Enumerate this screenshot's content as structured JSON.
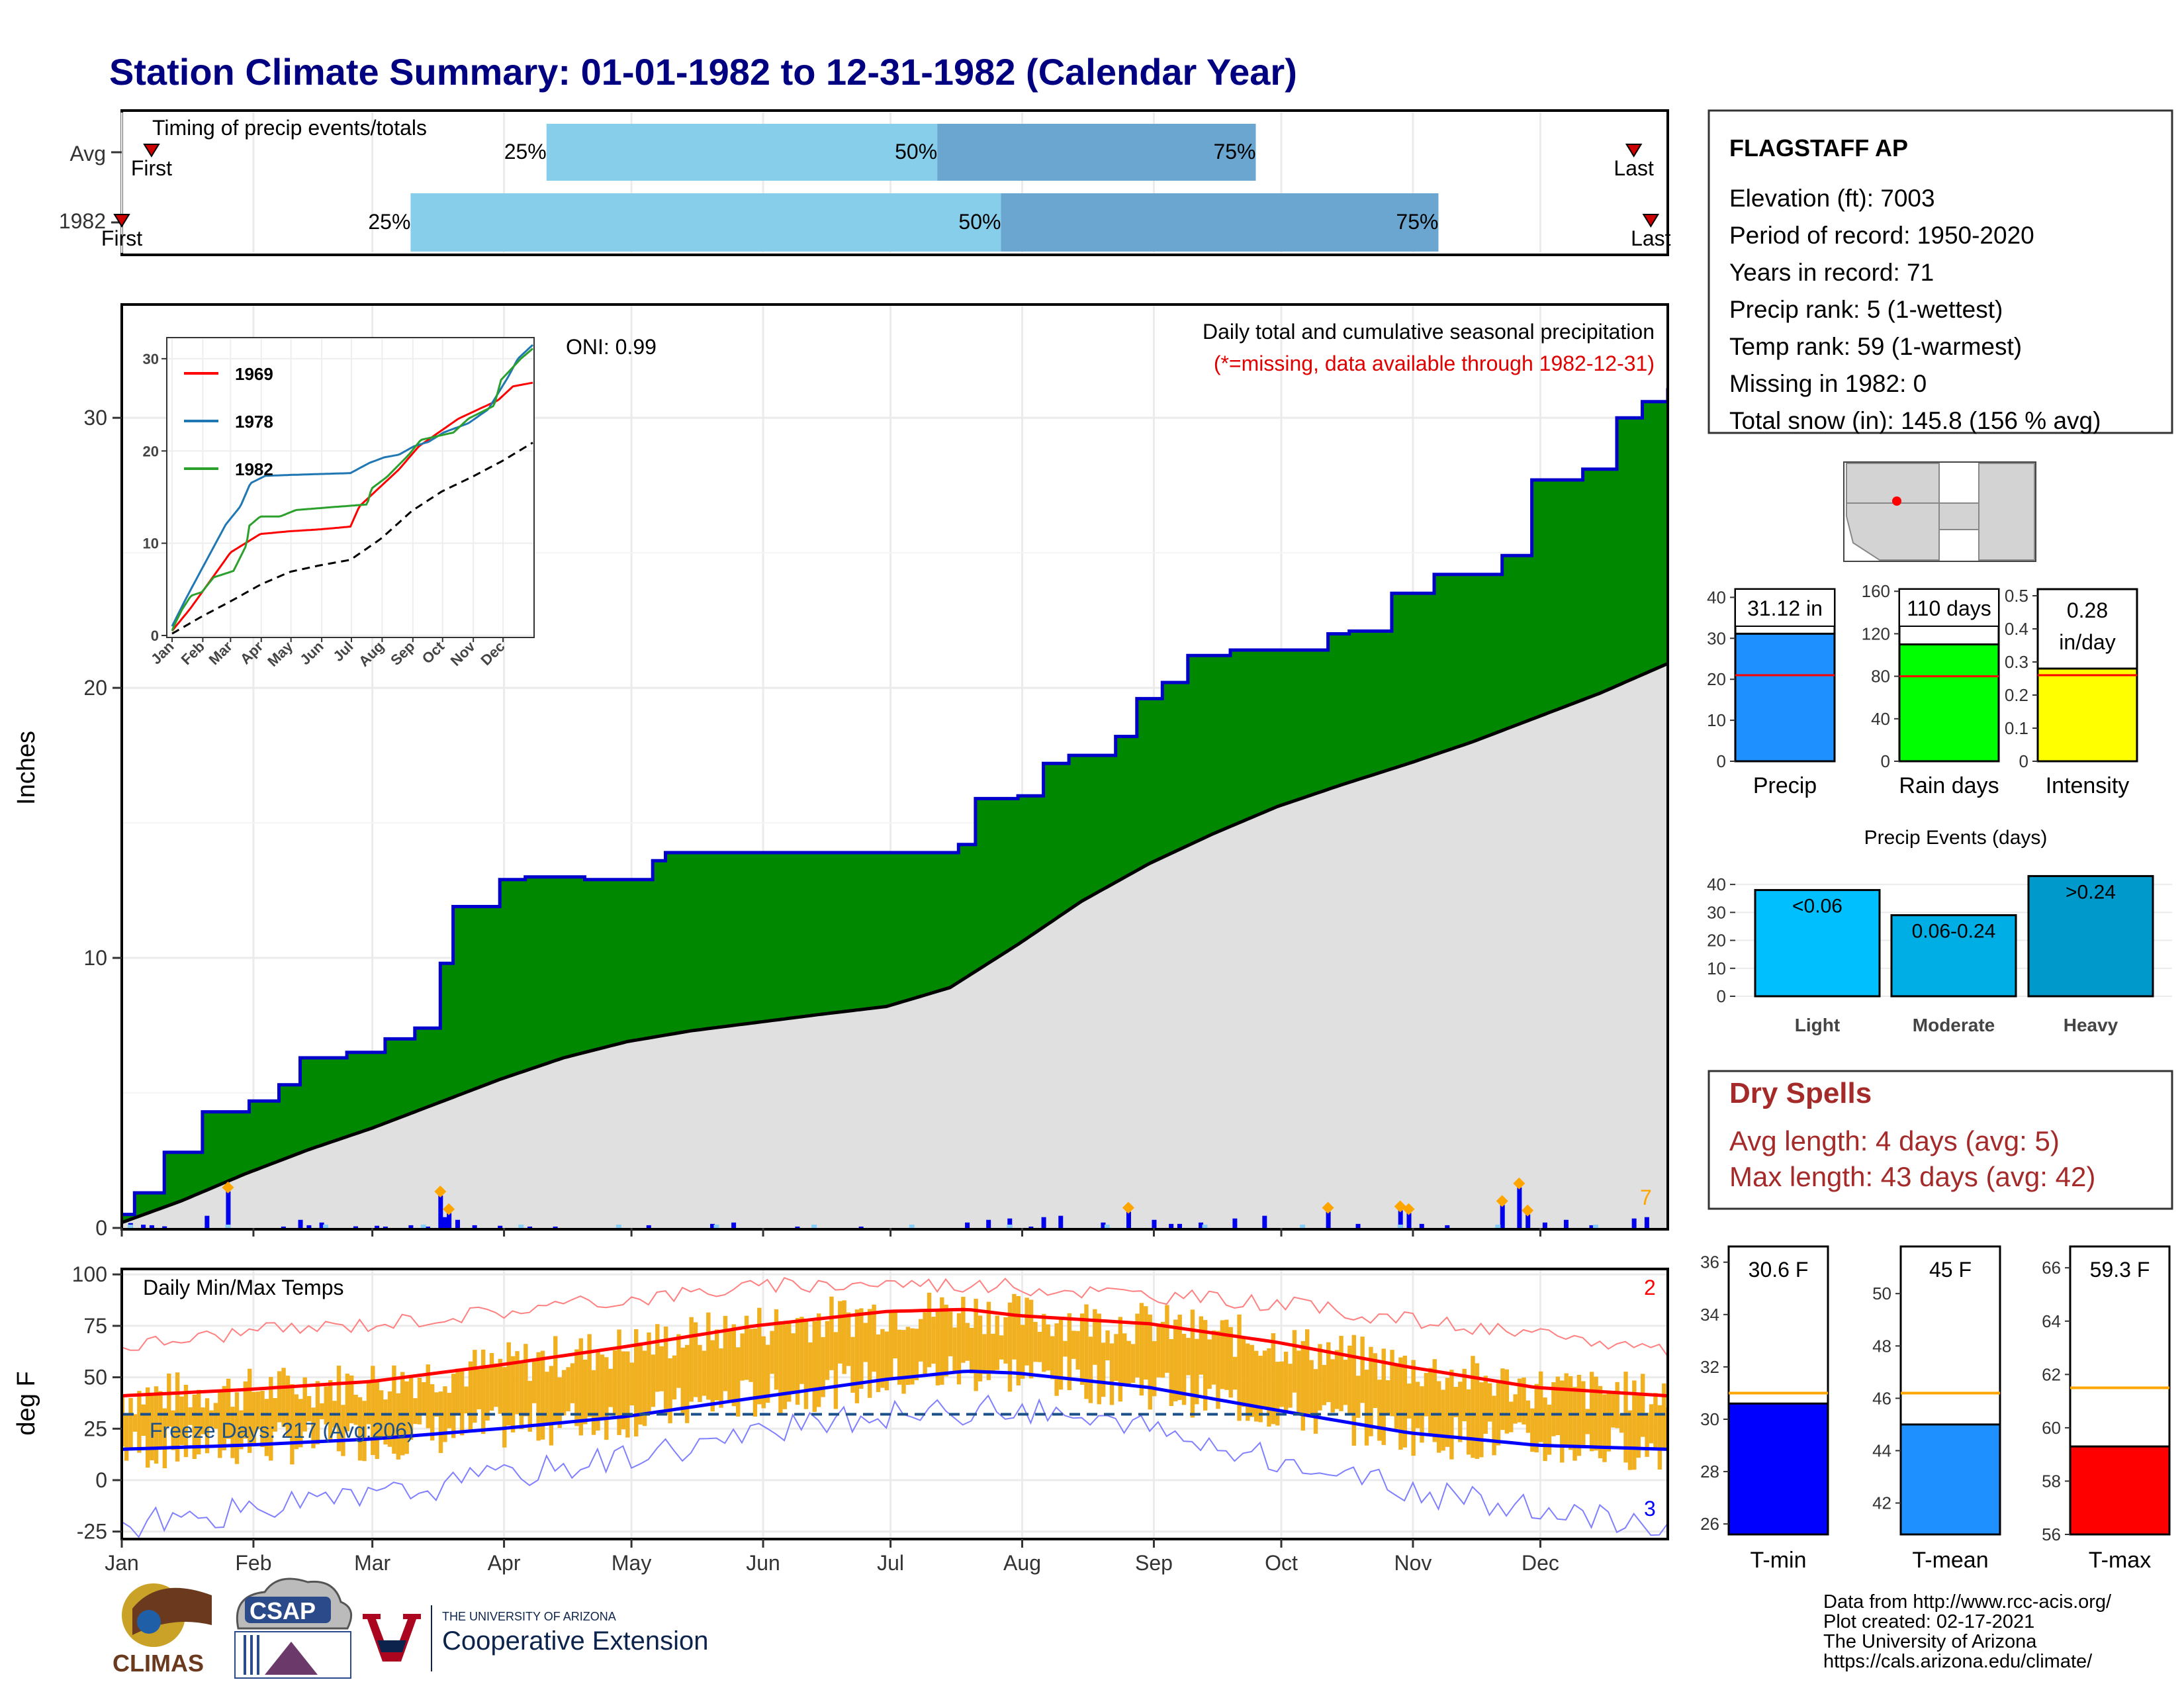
{
  "title": "Station Climate Summary: 01-01-1982 to 12-31-1982 (Calendar Year)",
  "colors": {
    "title": "#000080",
    "cum_area": "#008800",
    "cum_line": "#0000cc",
    "avg_area": "#e0e0e0",
    "q_light": "#87ceeb",
    "q_dark": "#6aa6cf",
    "temp_bar": "#f0b020",
    "tmax_avg": "#ff0000",
    "tmin_avg": "#0000ff",
    "dry": "#a52a2a",
    "precip_bar": "#1e90ff",
    "rain_bar": "#00ff00",
    "int_bar": "#ffff00",
    "light": "#00bfff",
    "moderate": "#00aee6",
    "heavy": "#0099cc",
    "tmin_bar": "#0000ff",
    "tmean_bar": "#1e90ff",
    "tmax_bar": "#ff0000",
    "ref_line": "#ffa500"
  },
  "months": [
    "Jan",
    "Feb",
    "Mar",
    "Apr",
    "May",
    "Jun",
    "Jul",
    "Aug",
    "Sep",
    "Oct",
    "Nov",
    "Dec"
  ],
  "timing": {
    "label": "Timing of precip events/totals",
    "rows": [
      {
        "name": "Avg",
        "first_label": "First",
        "last_label": "Last",
        "first_doy": 8,
        "q25_doy": 101,
        "q50_doy": 193,
        "q75_doy": 268,
        "last_doy": 357,
        "q25_label": "25%",
        "q50_label": "50%",
        "q75_label": "75%"
      },
      {
        "name": "1982",
        "first_label": "First",
        "last_label": "Last",
        "first_doy": 1,
        "q25_doy": 69,
        "q50_doy": 208,
        "q75_doy": 311,
        "last_doy": 361,
        "q25_label": "25%",
        "q50_label": "50%",
        "q75_label": "75%"
      }
    ]
  },
  "precip_panel": {
    "ylabel": "Inches",
    "oni": "ONI: 0.99",
    "header": "Daily total and cumulative seasonal precipitation",
    "missing_note": "(*=missing, data available through 1982-12-31)",
    "corner_count": "7",
    "yticks": [
      0,
      10,
      20,
      30
    ]
  },
  "chart_data": [
    {
      "type": "area",
      "name": "cumulative precipitation 1982 vs average",
      "ylabel": "Inches",
      "ylim": [
        0,
        34
      ],
      "x_unit": "day of year",
      "series": [
        {
          "name": "1982",
          "x": [
            1,
            4,
            11,
            20,
            31,
            38,
            43,
            54,
            63,
            70,
            76,
            79,
            90,
            96,
            110,
            126,
            129,
            161,
            176,
            198,
            202,
            212,
            218,
            224,
            235,
            240,
            246,
            252,
            262,
            270,
            285,
            290,
            300,
            310,
            326,
            333,
            345,
            353,
            359,
            365
          ],
          "values": [
            0.5,
            1.3,
            2.8,
            4.3,
            4.7,
            5.3,
            6.3,
            6.5,
            7.0,
            7.4,
            9.8,
            11.9,
            12.9,
            13.0,
            12.9,
            13.6,
            13.9,
            13.9,
            13.9,
            14.2,
            15.9,
            16.0,
            17.2,
            17.5,
            18.2,
            19.6,
            20.2,
            21.2,
            21.4,
            21.4,
            22.0,
            22.1,
            23.5,
            24.2,
            24.9,
            27.7,
            28.1,
            30.0,
            30.6,
            31.1
          ]
        },
        {
          "name": "Avg",
          "x": [
            1,
            15,
            30,
            45,
            60,
            75,
            90,
            105,
            120,
            135,
            150,
            165,
            181,
            196,
            212,
            227,
            243,
            258,
            273,
            288,
            304,
            319,
            334,
            349,
            365
          ],
          "values": [
            0.2,
            1.0,
            2.0,
            2.9,
            3.7,
            4.6,
            5.5,
            6.3,
            6.9,
            7.3,
            7.6,
            7.9,
            8.2,
            8.9,
            10.5,
            12.1,
            13.5,
            14.6,
            15.6,
            16.4,
            17.2,
            18.0,
            18.9,
            19.8,
            20.9
          ]
        }
      ]
    },
    {
      "type": "bar",
      "name": "daily precipitation 1982",
      "x_unit": "day of year",
      "x": [
        3,
        6,
        8,
        11,
        21,
        26,
        39,
        43,
        45,
        48,
        56,
        61,
        63,
        69,
        73,
        76,
        77,
        78,
        80,
        84,
        90,
        97,
        103,
        125,
        140,
        145,
        160,
        175,
        200,
        205,
        210,
        215,
        218,
        222,
        232,
        238,
        244,
        248,
        250,
        255,
        263,
        270,
        285,
        292,
        302,
        304,
        307,
        313,
        326,
        330,
        332,
        336,
        341,
        347,
        357,
        360
      ],
      "values": [
        0.18,
        0.12,
        0.1,
        0.06,
        0.45,
        1.35,
        0.05,
        0.3,
        0.1,
        0.2,
        0.06,
        0.08,
        0.05,
        0.1,
        0.05,
        1.2,
        0.4,
        0.55,
        0.3,
        0.1,
        0.08,
        0.05,
        0.05,
        0.1,
        0.15,
        0.2,
        0.05,
        0.05,
        0.2,
        0.3,
        0.35,
        0.05,
        0.4,
        0.45,
        0.2,
        0.6,
        0.3,
        0.15,
        0.15,
        0.2,
        0.35,
        0.45,
        0.6,
        0.15,
        0.65,
        0.55,
        0.15,
        0.1,
        0.85,
        1.5,
        0.5,
        0.2,
        0.3,
        0.1,
        0.35,
        0.4
      ]
    },
    {
      "type": "line",
      "name": "inset cumulative precipitation",
      "ylim": [
        0,
        32
      ],
      "yticks": [
        0,
        10,
        20,
        30
      ],
      "xticks": [
        "Jan",
        "Feb",
        "Mar",
        "Apr",
        "May",
        "Jun",
        "Jul",
        "Aug",
        "Sep",
        "Oct",
        "Nov",
        "Dec"
      ],
      "legend": [
        "1969",
        "1978",
        "1982"
      ],
      "series": [
        {
          "name": "1969",
          "x": [
            1,
            20,
            40,
            60,
            75,
            90,
            120,
            150,
            181,
            190,
            210,
            230,
            250,
            270,
            290,
            310,
            330,
            345,
            365
          ],
          "values": [
            0.5,
            3,
            6,
            9,
            10,
            11,
            11.3,
            11.5,
            11.8,
            14,
            16,
            18,
            20.5,
            22,
            23.5,
            24.5,
            25.5,
            27,
            27.4
          ]
        },
        {
          "name": "1978",
          "x": [
            1,
            15,
            35,
            55,
            70,
            80,
            95,
            120,
            150,
            181,
            200,
            215,
            230,
            245,
            260,
            275,
            300,
            320,
            340,
            350,
            365
          ],
          "values": [
            1,
            4,
            8,
            12,
            14,
            16.5,
            17.3,
            17.4,
            17.5,
            17.6,
            18.7,
            19.3,
            19.6,
            20.5,
            21,
            22,
            23,
            24.5,
            28,
            30,
            31.5
          ]
        },
        {
          "name": "1982",
          "x": [
            1,
            4,
            11,
            20,
            31,
            43,
            63,
            76,
            79,
            90,
            110,
            126,
            161,
            198,
            202,
            218,
            240,
            252,
            285,
            300,
            326,
            333,
            353,
            365
          ],
          "values": [
            0.5,
            1.3,
            2.8,
            4.3,
            4.7,
            6.3,
            7.0,
            9.8,
            11.9,
            12.9,
            12.9,
            13.6,
            13.9,
            14.2,
            15.9,
            17.2,
            19.6,
            21.2,
            22.0,
            23.5,
            24.9,
            27.7,
            30.0,
            31.1
          ]
        },
        {
          "name": "Avg",
          "x": [
            1,
            30,
            60,
            90,
            120,
            150,
            181,
            212,
            243,
            273,
            304,
            334,
            365
          ],
          "values": [
            0.2,
            2.0,
            3.7,
            5.5,
            6.9,
            7.6,
            8.2,
            10.5,
            13.5,
            15.6,
            17.2,
            18.9,
            20.9
          ]
        }
      ]
    },
    {
      "type": "line",
      "name": "daily min/max temps",
      "ylabel": "deg F",
      "ylim": [
        -28,
        102
      ],
      "yticks": [
        -25,
        0,
        25,
        50,
        75,
        100
      ],
      "xticks": [
        "Jan",
        "Feb",
        "Mar",
        "Apr",
        "May",
        "Jun",
        "Jul",
        "Aug",
        "Sep",
        "Oct",
        "Nov",
        "Dec"
      ],
      "series": [
        {
          "name": "avg_tmax",
          "x": [
            1,
            30,
            60,
            90,
            120,
            150,
            181,
            200,
            212,
            243,
            273,
            304,
            334,
            365
          ],
          "values": [
            41,
            44,
            48,
            56,
            65,
            75,
            82,
            83,
            80,
            76,
            67,
            55,
            45,
            41
          ]
        },
        {
          "name": "avg_tmin",
          "x": [
            1,
            30,
            60,
            90,
            120,
            150,
            181,
            200,
            212,
            243,
            273,
            304,
            334,
            365
          ],
          "values": [
            15,
            17,
            20,
            25,
            31,
            40,
            49,
            53,
            52,
            45,
            34,
            23,
            17,
            15
          ]
        },
        {
          "name": "record_high",
          "x": [
            1,
            30,
            60,
            90,
            120,
            150,
            181,
            212,
            243,
            273,
            304,
            334,
            365
          ],
          "values": [
            65,
            72,
            76,
            82,
            88,
            94,
            96,
            94,
            90,
            86,
            78,
            70,
            64
          ]
        },
        {
          "name": "record_low",
          "x": [
            1,
            30,
            60,
            90,
            120,
            150,
            181,
            212,
            243,
            273,
            304,
            334,
            365
          ],
          "values": [
            -22,
            -15,
            -8,
            2,
            12,
            22,
            32,
            35,
            24,
            10,
            -5,
            -15,
            -22
          ]
        },
        {
          "name": "freeze_line",
          "values": [
            32
          ]
        }
      ]
    },
    {
      "type": "bar",
      "name": "precip summary",
      "panels": [
        {
          "category": "Precip",
          "value": 31.12,
          "avg": 21.0,
          "label": "31.12 in",
          "yticks": [
            0,
            10,
            20,
            30,
            40
          ],
          "ylim": [
            0,
            42
          ]
        },
        {
          "category": "Rain days",
          "value": 110,
          "avg": 80,
          "label": "110 days",
          "yticks": [
            0,
            40,
            80,
            120,
            160
          ],
          "ylim": [
            0,
            162
          ]
        },
        {
          "category": "Intensity",
          "value": 0.28,
          "avg": 0.26,
          "label": "0.28 in/day",
          "yticks": [
            0.0,
            0.1,
            0.2,
            0.3,
            0.4,
            0.5
          ],
          "ylim": [
            0,
            0.52
          ]
        }
      ]
    },
    {
      "type": "bar",
      "name": "Precip Events (days)",
      "categories": [
        "Light",
        "Moderate",
        "Heavy"
      ],
      "labels": [
        "<0.06",
        "0.06-0.24",
        ">0.24"
      ],
      "values": [
        38,
        29,
        43
      ],
      "yticks": [
        0,
        10,
        20,
        30,
        40
      ],
      "ylim": [
        0,
        45
      ]
    },
    {
      "type": "bar",
      "name": "temperature summary",
      "panels": [
        {
          "category": "T-min",
          "value": 30.6,
          "avg": 31.0,
          "label": "30.6 F",
          "yticks": [
            26,
            28,
            30,
            32,
            34,
            36
          ],
          "ylim": [
            25.6,
            36.6
          ]
        },
        {
          "category": "T-mean",
          "value": 45,
          "avg": 46.2,
          "label": "45 F",
          "yticks": [
            42,
            44,
            46,
            48,
            50
          ],
          "ylim": [
            40.8,
            51.8
          ]
        },
        {
          "category": "T-max",
          "value": 59.3,
          "avg": 61.5,
          "label": "59.3 F",
          "yticks": [
            56,
            58,
            60,
            62,
            64,
            66
          ],
          "ylim": [
            56,
            66.8
          ]
        }
      ]
    }
  ],
  "temp_panel": {
    "label": "Daily Min/Max Temps",
    "freeze": "Freeze Days: 217 (Avg:206)",
    "ylabel": "deg F",
    "count_top": "2",
    "count_bottom": "3"
  },
  "station": {
    "name": "FLAGSTAFF AP",
    "lines": [
      "Elevation (ft): 7003",
      "Period of record: 1950-2020",
      "Years in record: 71",
      "Precip rank: 5 (1-wettest)",
      "Temp rank: 59 (1-warmest)",
      "Missing in 1982: 0",
      "Total snow (in): 145.8 (156 % avg)"
    ]
  },
  "precip_events_title": "Precip Events (days)",
  "dry_spells": {
    "title": "Dry Spells",
    "avg": "Avg length: 4 days (avg: 5)",
    "max": "Max length: 43 days (avg: 42)"
  },
  "footer": {
    "lines": [
      "Data from http://www.rcc-acis.org/",
      "Plot created: 02-17-2021",
      "The University of Arizona",
      "https://cals.arizona.edu/climate/"
    ],
    "logo_climas": "CLIMAS",
    "logo_csap": "CSAP",
    "ua_small": "THE UNIVERSITY OF ARIZONA",
    "ua_big": "Cooperative Extension"
  }
}
